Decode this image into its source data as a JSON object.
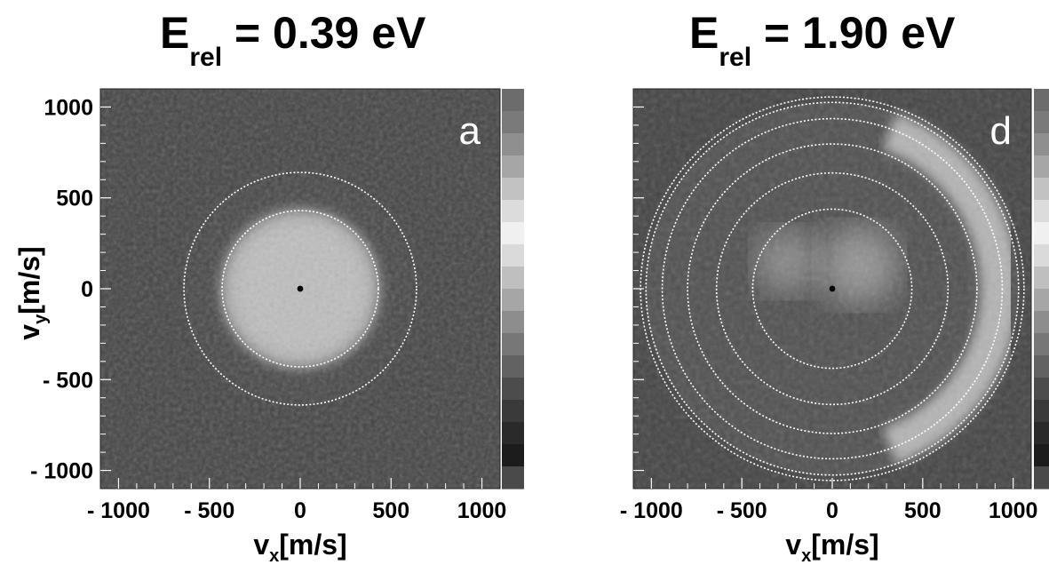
{
  "chart_data": [
    {
      "type": "heatmap",
      "panel_label": "a",
      "title": {
        "main": "E",
        "subscript": "rel",
        "rest": " = 0.39 eV"
      },
      "xlabel": {
        "main": "v",
        "subscript": "x",
        "rest": "[m/s]"
      },
      "ylabel": {
        "main": "v",
        "subscript": "y",
        "rest": "[m/s]"
      },
      "xlim": [
        -1100,
        1100
      ],
      "ylim": [
        -1100,
        1100
      ],
      "x_ticks": [
        -1000,
        -500,
        0,
        500,
        1000
      ],
      "x_tick_labels": [
        "- 1000",
        "- 500",
        "0",
        "500",
        "1000"
      ],
      "y_ticks": [
        1000,
        500,
        0,
        -500,
        -1000
      ],
      "y_tick_labels": [
        "1000",
        "500",
        "0",
        "- 500",
        "- 1000"
      ],
      "colormap": "grayscale",
      "colorbar": true,
      "center_marker": [
        0,
        0
      ],
      "dotted_circle_radii": [
        430,
        640
      ],
      "intensity_features": [
        {
          "shape": "disc",
          "center": [
            0,
            0
          ],
          "radius": 430,
          "level": 0.75
        },
        {
          "shape": "dark-ring",
          "inner_radius": 430,
          "outer_radius": 640,
          "level": 0.18
        }
      ]
    },
    {
      "type": "heatmap",
      "panel_label": "d",
      "title": {
        "main": "E",
        "subscript": "rel",
        "rest": " = 1.90 eV"
      },
      "xlabel": {
        "main": "v",
        "subscript": "x",
        "rest": "[m/s]"
      },
      "xlim": [
        -1100,
        1100
      ],
      "ylim": [
        -1100,
        1100
      ],
      "x_ticks": [
        -1000,
        -500,
        0,
        500,
        1000
      ],
      "x_tick_labels": [
        "- 1000",
        "- 500",
        "0",
        "500",
        "1000"
      ],
      "colormap": "grayscale",
      "colorbar": true,
      "center_marker": [
        0,
        0
      ],
      "dotted_circle_radii": [
        440,
        640,
        800,
        940,
        1030,
        1060
      ],
      "intensity_features": [
        {
          "shape": "outer-disc",
          "center": [
            0,
            0
          ],
          "radius": 1030,
          "level": 0.2
        },
        {
          "shape": "bright-crescent",
          "side": "right",
          "inner_radius": 820,
          "outer_radius": 1030,
          "level": 0.7
        },
        {
          "shape": "blob",
          "center": [
            -250,
            150
          ],
          "radius": 180,
          "level": 0.55
        },
        {
          "shape": "blob",
          "center": [
            150,
            130
          ],
          "radius": 220,
          "level": 0.6
        }
      ]
    }
  ],
  "colorbar_colors": [
    "#6c6c6c",
    "#7a7a7a",
    "#8f8f8f",
    "#a6a6a6",
    "#c2c2c2",
    "#dcdcdc",
    "#f0f0f0",
    "#dadada",
    "#bfbfbf",
    "#a6a6a6",
    "#8d8d8d",
    "#777777",
    "#626262",
    "#4c4c4c",
    "#3a3a3a",
    "#2a2a2a",
    "#1c1c1c",
    "#4a4a4a"
  ],
  "background_color": "#444444"
}
